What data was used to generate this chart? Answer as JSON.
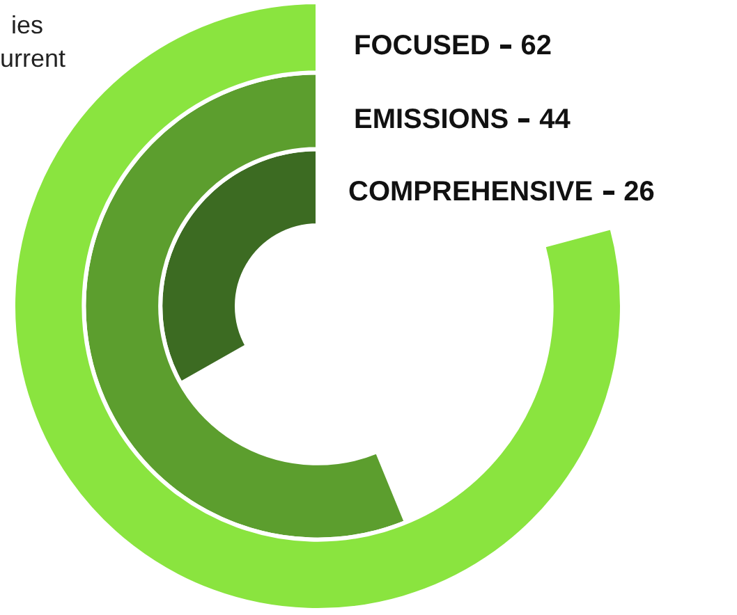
{
  "chart_data": {
    "type": "other",
    "categories": [
      "FOCUSED",
      "EMISSIONS",
      "COMPREHENSIVE"
    ],
    "values": [
      62,
      44,
      26
    ],
    "colors": [
      "#8ae43f",
      "#5c9e2e",
      "#3c6b22"
    ],
    "data_labels": true,
    "annotations": [
      "ies",
      "urrent"
    ]
  }
}
